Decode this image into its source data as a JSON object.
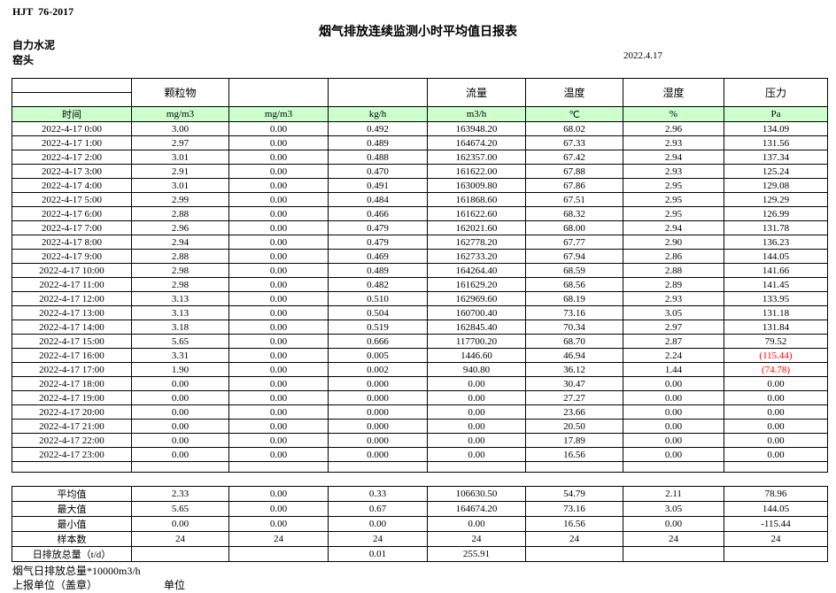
{
  "doc": {
    "standard": "HJT  76-2017",
    "title": "烟气排放连续监测小时平均值日报表",
    "company": "自力水泥",
    "unit_name": "窑头",
    "date": "2022.4.17"
  },
  "table": {
    "group_headers": [
      "",
      "颗粒物",
      "",
      "",
      "流量",
      "温度",
      "湿度",
      "压力"
    ],
    "unit_row": [
      "时间",
      "mg/m3",
      "mg/m3",
      "kg/h",
      "m3/h",
      "℃",
      "%",
      "Pa"
    ],
    "rows": [
      [
        "2022-4-17 0:00",
        "3.00",
        "0.00",
        "0.492",
        "163948.20",
        "68.02",
        "2.96",
        "134.09"
      ],
      [
        "2022-4-17 1:00",
        "2.97",
        "0.00",
        "0.489",
        "164674.20",
        "67.33",
        "2.93",
        "131.56"
      ],
      [
        "2022-4-17 2:00",
        "3.01",
        "0.00",
        "0.488",
        "162357.00",
        "67.42",
        "2.94",
        "137.34"
      ],
      [
        "2022-4-17 3:00",
        "2.91",
        "0.00",
        "0.470",
        "161622.00",
        "67.88",
        "2.93",
        "125.24"
      ],
      [
        "2022-4-17 4:00",
        "3.01",
        "0.00",
        "0.491",
        "163009.80",
        "67.86",
        "2.95",
        "129.08"
      ],
      [
        "2022-4-17 5:00",
        "2.99",
        "0.00",
        "0.484",
        "161868.60",
        "67.51",
        "2.95",
        "129.29"
      ],
      [
        "2022-4-17 6:00",
        "2.88",
        "0.00",
        "0.466",
        "161622.60",
        "68.32",
        "2.95",
        "126.99"
      ],
      [
        "2022-4-17 7:00",
        "2.96",
        "0.00",
        "0.479",
        "162021.60",
        "68.00",
        "2.94",
        "131.78"
      ],
      [
        "2022-4-17 8:00",
        "2.94",
        "0.00",
        "0.479",
        "162778.20",
        "67.77",
        "2.90",
        "136.23"
      ],
      [
        "2022-4-17 9:00",
        "2.88",
        "0.00",
        "0.469",
        "162733.20",
        "67.94",
        "2.86",
        "144.05"
      ],
      [
        "2022-4-17 10:00",
        "2.98",
        "0.00",
        "0.489",
        "164264.40",
        "68.59",
        "2.88",
        "141.66"
      ],
      [
        "2022-4-17 11:00",
        "2.98",
        "0.00",
        "0.482",
        "161629.20",
        "68.56",
        "2.89",
        "141.45"
      ],
      [
        "2022-4-17 12:00",
        "3.13",
        "0.00",
        "0.510",
        "162969.60",
        "68.19",
        "2.93",
        "133.95"
      ],
      [
        "2022-4-17 13:00",
        "3.13",
        "0.00",
        "0.504",
        "160700.40",
        "73.16",
        "3.05",
        "131.18"
      ],
      [
        "2022-4-17 14:00",
        "3.18",
        "0.00",
        "0.519",
        "162845.40",
        "70.34",
        "2.97",
        "131.84"
      ],
      [
        "2022-4-17 15:00",
        "5.65",
        "0.00",
        "0.666",
        "117700.20",
        "68.70",
        "2.87",
        "79.52"
      ],
      [
        "2022-4-17 16:00",
        "3.31",
        "0.00",
        "0.005",
        "1446.60",
        "46.94",
        "2.24",
        "(115.44)"
      ],
      [
        "2022-4-17 17:00",
        "1.90",
        "0.00",
        "0.002",
        "940.80",
        "36.12",
        "1.44",
        "(74.78)"
      ],
      [
        "2022-4-17 18:00",
        "0.00",
        "0.00",
        "0.000",
        "0.00",
        "30.47",
        "0.00",
        "0.00"
      ],
      [
        "2022-4-17 19:00",
        "0.00",
        "0.00",
        "0.000",
        "0.00",
        "27.27",
        "0.00",
        "0.00"
      ],
      [
        "2022-4-17 20:00",
        "0.00",
        "0.00",
        "0.000",
        "0.00",
        "23.66",
        "0.00",
        "0.00"
      ],
      [
        "2022-4-17 21:00",
        "0.00",
        "0.00",
        "0.000",
        "0.00",
        "20.50",
        "0.00",
        "0.00"
      ],
      [
        "2022-4-17 22:00",
        "0.00",
        "0.00",
        "0.000",
        "0.00",
        "17.89",
        "0.00",
        "0.00"
      ],
      [
        "2022-4-17 23:00",
        "0.00",
        "0.00",
        "0.000",
        "0.00",
        "16.56",
        "0.00",
        "0.00"
      ]
    ],
    "summary": [
      {
        "label": "平均值",
        "values": [
          "2.33",
          "0.00",
          "0.33",
          "106630.50",
          "54.79",
          "2.11",
          "78.96"
        ]
      },
      {
        "label": "最大值",
        "values": [
          "5.65",
          "0.00",
          "0.67",
          "164674.20",
          "73.16",
          "3.05",
          "144.05"
        ]
      },
      {
        "label": "最小值",
        "values": [
          "0.00",
          "0.00",
          "0.00",
          "0.00",
          "16.56",
          "0.00",
          "-115.44"
        ]
      },
      {
        "label": "样本数",
        "values": [
          "24",
          "24",
          "24",
          "24",
          "24",
          "24",
          "24"
        ]
      },
      {
        "label": "日排放总量（t/d）",
        "values": [
          "",
          "",
          "0.01",
          "255.91",
          "",
          "",
          ""
        ]
      }
    ]
  },
  "footer": {
    "line1": "烟气日排放总量*10000m3/h",
    "line2": "上报单位（盖章）",
    "line3": "单位"
  },
  "colors": {
    "unit_row_bg": "#ccffcc",
    "alarm_text": "#ff0000",
    "border": "#000000"
  }
}
